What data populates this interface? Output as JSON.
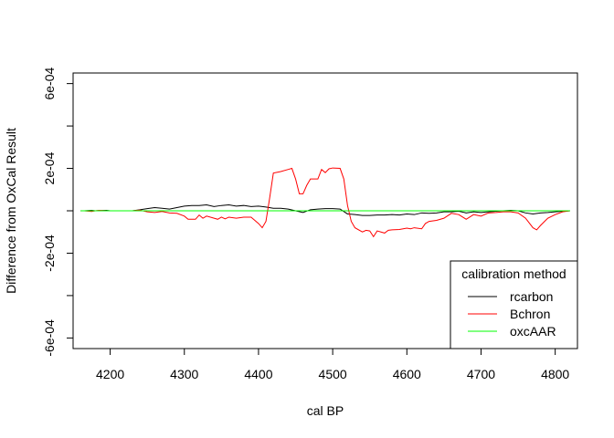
{
  "chart_data": {
    "type": "line",
    "title": "",
    "xlabel": "cal BP",
    "ylabel": "Difference from OxCal Result",
    "xlim": [
      4150,
      4830
    ],
    "ylim": [
      -0.00065,
      0.00065
    ],
    "x_ticks": [
      4200,
      4300,
      4400,
      4500,
      4600,
      4700,
      4800
    ],
    "x_tick_labels": [
      "4200",
      "4300",
      "4400",
      "4500",
      "4600",
      "4700",
      "4800"
    ],
    "y_ticks": [
      0.0006,
      0.0002,
      -0.0002,
      -0.0006
    ],
    "y_tick_labels": [
      "6e-04",
      "2e-04",
      "-2e-04",
      "-6e-04"
    ],
    "y_minor_ticks": [
      0.0004,
      0.0,
      -0.0004
    ],
    "grid": false,
    "legend": {
      "title": "calibration method",
      "placement": "bottom-right",
      "entries": [
        {
          "name": "rcarbon",
          "color": "#000000"
        },
        {
          "name": "Bchron",
          "color": "#ff0000"
        },
        {
          "name": "oxcAAR",
          "color": "#00ff00"
        }
      ]
    },
    "series": [
      {
        "name": "rcarbon",
        "color": "#000000",
        "points": [
          [
            4160,
            0
          ],
          [
            4165,
            0
          ],
          [
            4175,
            2e-06
          ],
          [
            4180,
            0
          ],
          [
            4195,
            2e-06
          ],
          [
            4200,
            0
          ],
          [
            4230,
            0
          ],
          [
            4240,
            5e-06
          ],
          [
            4250,
            1e-05
          ],
          [
            4260,
            1.5e-05
          ],
          [
            4270,
            1.2e-05
          ],
          [
            4280,
            8e-06
          ],
          [
            4290,
            1.5e-05
          ],
          [
            4300,
            2.2e-05
          ],
          [
            4310,
            2.5e-05
          ],
          [
            4320,
            2.5e-05
          ],
          [
            4330,
            2.8e-05
          ],
          [
            4340,
            2e-05
          ],
          [
            4350,
            2.5e-05
          ],
          [
            4360,
            2.8e-05
          ],
          [
            4370,
            2.2e-05
          ],
          [
            4380,
            2.5e-05
          ],
          [
            4390,
            2e-05
          ],
          [
            4400,
            2.2e-05
          ],
          [
            4410,
            1.8e-05
          ],
          [
            4420,
            1.2e-05
          ],
          [
            4430,
            1.2e-05
          ],
          [
            4440,
            8e-06
          ],
          [
            4450,
            0
          ],
          [
            4460,
            -8e-06
          ],
          [
            4470,
            5e-06
          ],
          [
            4480,
            8e-06
          ],
          [
            4490,
            1e-05
          ],
          [
            4500,
            1e-05
          ],
          [
            4510,
            8e-06
          ],
          [
            4520,
            -1.5e-05
          ],
          [
            4530,
            -1.8e-05
          ],
          [
            4540,
            -2.2e-05
          ],
          [
            4550,
            -2.2e-05
          ],
          [
            4560,
            -2e-05
          ],
          [
            4570,
            -2e-05
          ],
          [
            4580,
            -1.8e-05
          ],
          [
            4590,
            -2e-05
          ],
          [
            4600,
            -1.5e-05
          ],
          [
            4610,
            -1.8e-05
          ],
          [
            4620,
            -1e-05
          ],
          [
            4630,
            -1.2e-05
          ],
          [
            4640,
            -1e-05
          ],
          [
            4650,
            -5e-06
          ],
          [
            4660,
            -5e-06
          ],
          [
            4670,
            -2e-06
          ],
          [
            4680,
            -1e-05
          ],
          [
            4690,
            -5e-06
          ],
          [
            4700,
            -8e-06
          ],
          [
            4710,
            -5e-06
          ],
          [
            4720,
            -2e-06
          ],
          [
            4730,
            0
          ],
          [
            4740,
            2e-06
          ],
          [
            4750,
            0
          ],
          [
            4760,
            -1e-05
          ],
          [
            4770,
            -1.5e-05
          ],
          [
            4780,
            -1e-05
          ],
          [
            4790,
            -8e-06
          ],
          [
            4800,
            -5e-06
          ],
          [
            4810,
            -2e-06
          ],
          [
            4820,
            0
          ]
        ]
      },
      {
        "name": "Bchron",
        "color": "#ff0000",
        "points": [
          [
            4160,
            0
          ],
          [
            4165,
            0
          ],
          [
            4175,
            -3e-06
          ],
          [
            4180,
            0
          ],
          [
            4185,
            2e-06
          ],
          [
            4195,
            0
          ],
          [
            4230,
            0
          ],
          [
            4240,
            3e-06
          ],
          [
            4250,
            -5e-06
          ],
          [
            4260,
            -8e-06
          ],
          [
            4270,
            -3e-06
          ],
          [
            4280,
            -1e-05
          ],
          [
            4290,
            -1.2e-05
          ],
          [
            4300,
            -2.5e-05
          ],
          [
            4305,
            -4e-05
          ],
          [
            4315,
            -4e-05
          ],
          [
            4320,
            -2e-05
          ],
          [
            4325,
            -3.5e-05
          ],
          [
            4330,
            -2.5e-05
          ],
          [
            4340,
            -3.5e-05
          ],
          [
            4345,
            -4e-05
          ],
          [
            4350,
            -3e-05
          ],
          [
            4355,
            -3.8e-05
          ],
          [
            4360,
            -3e-05
          ],
          [
            4370,
            -3.5e-05
          ],
          [
            4380,
            -3e-05
          ],
          [
            4390,
            -3e-05
          ],
          [
            4400,
            -6e-05
          ],
          [
            4405,
            -8e-05
          ],
          [
            4410,
            -5e-05
          ],
          [
            4415,
            6e-05
          ],
          [
            4420,
            0.000178
          ],
          [
            4430,
            0.000185
          ],
          [
            4440,
            0.000195
          ],
          [
            4445,
            0.0002
          ],
          [
            4450,
            0.00015
          ],
          [
            4455,
            8e-05
          ],
          [
            4460,
            8e-05
          ],
          [
            4465,
            0.00012
          ],
          [
            4470,
            0.00015
          ],
          [
            4475,
            0.00015
          ],
          [
            4480,
            0.00015
          ],
          [
            4485,
            0.000195
          ],
          [
            4490,
            0.00018
          ],
          [
            4495,
            0.000198
          ],
          [
            4500,
            0.000202
          ],
          [
            4510,
            0.0002
          ],
          [
            4515,
            0.00015
          ],
          [
            4520,
            2.5e-05
          ],
          [
            4525,
            -5e-05
          ],
          [
            4530,
            -8e-05
          ],
          [
            4540,
            -0.0001
          ],
          [
            4545,
            -9.2e-05
          ],
          [
            4550,
            -9.5e-05
          ],
          [
            4555,
            -0.000122
          ],
          [
            4560,
            -9.5e-05
          ],
          [
            4570,
            -0.000105
          ],
          [
            4575,
            -9.2e-05
          ],
          [
            4580,
            -9e-05
          ],
          [
            4590,
            -8.8e-05
          ],
          [
            4600,
            -8.2e-05
          ],
          [
            4605,
            -8.5e-05
          ],
          [
            4610,
            -8e-05
          ],
          [
            4620,
            -8.5e-05
          ],
          [
            4625,
            -6e-05
          ],
          [
            4630,
            -5e-05
          ],
          [
            4640,
            -4.5e-05
          ],
          [
            4650,
            -3.5e-05
          ],
          [
            4660,
            -1.2e-05
          ],
          [
            4670,
            -1.8e-05
          ],
          [
            4680,
            -4e-05
          ],
          [
            4690,
            -1.8e-05
          ],
          [
            4700,
            -2.5e-05
          ],
          [
            4710,
            -1e-05
          ],
          [
            4720,
            -8e-06
          ],
          [
            4730,
            -5e-06
          ],
          [
            4740,
            -5e-06
          ],
          [
            4750,
            -1e-05
          ],
          [
            4760,
            -3.5e-05
          ],
          [
            4770,
            -8e-05
          ],
          [
            4775,
            -9e-05
          ],
          [
            4780,
            -7e-05
          ],
          [
            4790,
            -3.5e-05
          ],
          [
            4800,
            -1.8e-05
          ],
          [
            4810,
            -5e-06
          ],
          [
            4820,
            0
          ]
        ]
      },
      {
        "name": "oxcAAR",
        "color": "#00ff00",
        "points": [
          [
            4160,
            0
          ],
          [
            4820,
            0
          ]
        ]
      }
    ]
  }
}
